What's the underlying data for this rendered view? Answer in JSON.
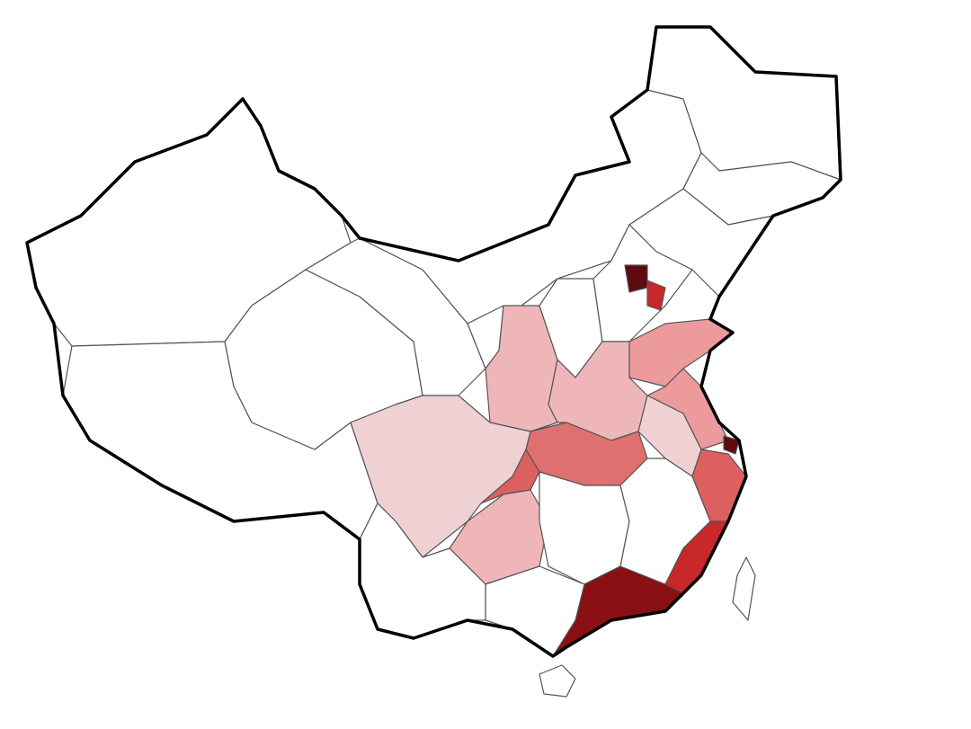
{
  "map": {
    "type": "choropleth",
    "legend": null,
    "colors": {
      "none": "#ffffff",
      "very_light": "#efd1d3",
      "light": "#efb6ba",
      "medium_light": "#ec9a9c",
      "medium": "#e07070",
      "medium_dark": "#dc6060",
      "dark": "#c8282a",
      "very_dark": "#8a1014",
      "darkest": "#5e0a0e"
    },
    "regions": [
      {
        "id": "xinjiang",
        "level": "none"
      },
      {
        "id": "tibet",
        "level": "none"
      },
      {
        "id": "qinghai",
        "level": "none"
      },
      {
        "id": "gansu",
        "level": "none"
      },
      {
        "id": "inner-mongolia",
        "level": "none"
      },
      {
        "id": "heilongjiang",
        "level": "none"
      },
      {
        "id": "jilin",
        "level": "none"
      },
      {
        "id": "liaoning",
        "level": "none"
      },
      {
        "id": "ningxia",
        "level": "none"
      },
      {
        "id": "shaanxi",
        "level": "light"
      },
      {
        "id": "shanxi",
        "level": "none"
      },
      {
        "id": "hebei",
        "level": "none"
      },
      {
        "id": "beijing",
        "level": "darkest"
      },
      {
        "id": "tianjin",
        "level": "dark"
      },
      {
        "id": "shandong",
        "level": "medium_light"
      },
      {
        "id": "henan",
        "level": "light"
      },
      {
        "id": "jiangsu",
        "level": "medium_light"
      },
      {
        "id": "anhui",
        "level": "very_light"
      },
      {
        "id": "shanghai",
        "level": "darkest"
      },
      {
        "id": "zhejiang",
        "level": "medium_dark"
      },
      {
        "id": "hubei",
        "level": "medium"
      },
      {
        "id": "chongqing",
        "level": "medium_dark"
      },
      {
        "id": "sichuan",
        "level": "very_light"
      },
      {
        "id": "guizhou",
        "level": "light"
      },
      {
        "id": "hunan",
        "level": "none"
      },
      {
        "id": "jiangxi",
        "level": "none"
      },
      {
        "id": "fujian",
        "level": "dark"
      },
      {
        "id": "guangdong",
        "level": "very_dark"
      },
      {
        "id": "guangxi",
        "level": "none"
      },
      {
        "id": "yunnan",
        "level": "none"
      },
      {
        "id": "hainan",
        "level": "none"
      },
      {
        "id": "taiwan",
        "level": "none"
      }
    ]
  }
}
